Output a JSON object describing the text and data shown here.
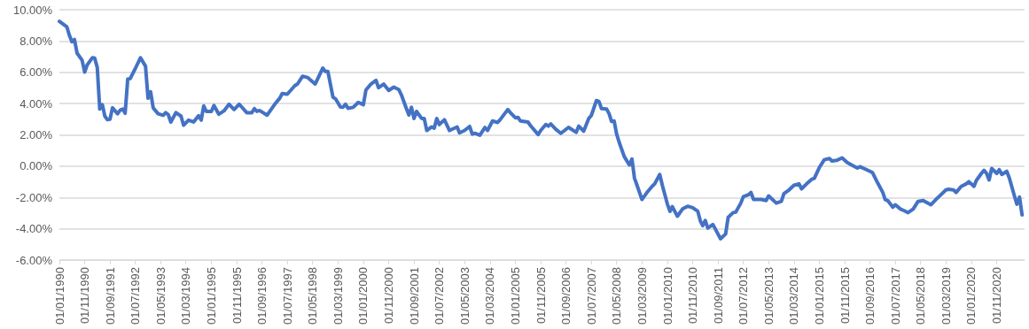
{
  "chart_data": {
    "type": "line",
    "line_style": "solid",
    "marker": "none",
    "grid": "y",
    "xlim": [
      "1990-01",
      "2021-10"
    ],
    "xticks": [
      {
        "value": "1990-01",
        "label": "01/01/1990"
      },
      {
        "value": "1990-11",
        "label": "01/11/1990"
      },
      {
        "value": "1991-09",
        "label": "01/09/1991"
      },
      {
        "value": "1992-07",
        "label": "01/07/1992"
      },
      {
        "value": "1993-05",
        "label": "01/05/1993"
      },
      {
        "value": "1994-03",
        "label": "01/03/1994"
      },
      {
        "value": "1995-01",
        "label": "01/01/1995"
      },
      {
        "value": "1995-11",
        "label": "01/11/1995"
      },
      {
        "value": "1996-09",
        "label": "01/09/1996"
      },
      {
        "value": "1997-07",
        "label": "01/07/1997"
      },
      {
        "value": "1998-05",
        "label": "01/05/1998"
      },
      {
        "value": "1999-03",
        "label": "01/03/1999"
      },
      {
        "value": "2000-01",
        "label": "01/01/2000"
      },
      {
        "value": "2000-11",
        "label": "01/11/2000"
      },
      {
        "value": "2001-09",
        "label": "01/09/2001"
      },
      {
        "value": "2002-07",
        "label": "01/07/2002"
      },
      {
        "value": "2003-05",
        "label": "01/05/2003"
      },
      {
        "value": "2004-03",
        "label": "01/03/2004"
      },
      {
        "value": "2005-01",
        "label": "01/01/2005"
      },
      {
        "value": "2005-11",
        "label": "01/11/2005"
      },
      {
        "value": "2006-09",
        "label": "01/09/2006"
      },
      {
        "value": "2007-07",
        "label": "01/07/2007"
      },
      {
        "value": "2008-05",
        "label": "01/05/2008"
      },
      {
        "value": "2009-03",
        "label": "01/03/2009"
      },
      {
        "value": "2010-01",
        "label": "01/01/2010"
      },
      {
        "value": "2010-11",
        "label": "01/11/2010"
      },
      {
        "value": "2011-09",
        "label": "01/09/2011"
      },
      {
        "value": "2012-07",
        "label": "01/07/2012"
      },
      {
        "value": "2013-05",
        "label": "01/05/2013"
      },
      {
        "value": "2014-03",
        "label": "01/03/2014"
      },
      {
        "value": "2015-01",
        "label": "01/01/2015"
      },
      {
        "value": "2015-11",
        "label": "01/11/2015"
      },
      {
        "value": "2016-09",
        "label": "01/09/2016"
      },
      {
        "value": "2017-07",
        "label": "01/07/2017"
      },
      {
        "value": "2018-05",
        "label": "01/05/2018"
      },
      {
        "value": "2019-03",
        "label": "01/03/2019"
      },
      {
        "value": "2020-01",
        "label": "01/01/2020"
      },
      {
        "value": "2020-11",
        "label": "01/11/2020"
      }
    ],
    "ylim": [
      -6,
      10
    ],
    "yticks": [
      {
        "value": -6,
        "label": "-6.00%"
      },
      {
        "value": -4,
        "label": "-4.00%"
      },
      {
        "value": -2,
        "label": "-2.00%"
      },
      {
        "value": 0,
        "label": "0.00%"
      },
      {
        "value": 2,
        "label": "2.00%"
      },
      {
        "value": 4,
        "label": "4.00%"
      },
      {
        "value": 6,
        "label": "6.00%"
      },
      {
        "value": 8,
        "label": "8.00%"
      },
      {
        "value": 10,
        "label": "10.00%"
      }
    ],
    "series": [
      {
        "color": "#4472c4",
        "x": [
          "1990-01",
          "1990-04",
          "1990-05",
          "1990-06",
          "1990-07",
          "1990-08",
          "1990-10",
          "1990-11",
          "1990-12",
          "1991-02",
          "1991-03",
          "1991-04",
          "1991-05",
          "1991-06",
          "1991-07",
          "1991-08",
          "1991-09",
          "1991-10",
          "1991-12",
          "1992-01",
          "1992-02",
          "1992-03",
          "1992-04",
          "1992-05",
          "1992-07",
          "1992-09",
          "1992-11",
          "1992-12",
          "1993-01",
          "1993-02",
          "1993-04",
          "1993-06",
          "1993-07",
          "1993-08",
          "1993-09",
          "1993-11",
          "1994-01",
          "1994-02",
          "1994-04",
          "1994-06",
          "1994-08",
          "1994-09",
          "1994-10",
          "1994-11",
          "1995-01",
          "1995-02",
          "1995-04",
          "1995-06",
          "1995-08",
          "1995-10",
          "1995-12",
          "1996-01",
          "1996-03",
          "1996-05",
          "1996-06",
          "1996-07",
          "1996-08",
          "1996-11",
          "1997-02",
          "1997-04",
          "1997-05",
          "1997-07",
          "1997-10",
          "1997-11",
          "1998-01",
          "1998-03",
          "1998-06",
          "1998-09",
          "1998-10",
          "1998-11",
          "1999-01",
          "1999-02",
          "1999-04",
          "1999-05",
          "1999-06",
          "1999-07",
          "1999-09",
          "1999-11",
          "2000-01",
          "2000-02",
          "2000-04",
          "2000-06",
          "2000-07",
          "2000-09",
          "2000-11",
          "2001-01",
          "2001-03",
          "2001-04",
          "2001-06",
          "2001-07",
          "2001-08",
          "2001-09",
          "2001-10",
          "2001-12",
          "2002-01",
          "2002-02",
          "2002-04",
          "2002-05",
          "2002-06",
          "2002-07",
          "2002-09",
          "2002-11",
          "2003-02",
          "2003-03",
          "2003-05",
          "2003-07",
          "2003-08",
          "2003-09",
          "2003-11",
          "2004-01",
          "2004-02",
          "2004-04",
          "2004-06",
          "2004-07",
          "2004-10",
          "2004-11",
          "2005-01",
          "2005-02",
          "2005-03",
          "2005-06",
          "2005-07",
          "2005-10",
          "2005-11",
          "2006-01",
          "2006-02",
          "2006-03",
          "2006-05",
          "2006-07",
          "2006-10",
          "2007-01",
          "2007-02",
          "2007-04",
          "2007-06",
          "2007-07",
          "2007-09",
          "2007-10",
          "2007-11",
          "2008-01",
          "2008-02",
          "2008-03",
          "2008-04",
          "2008-05",
          "2008-06",
          "2008-08",
          "2008-10",
          "2008-11",
          "2008-12",
          "2009-01",
          "2009-03",
          "2009-05",
          "2009-07",
          "2009-08",
          "2009-10",
          "2009-11",
          "2010-01",
          "2010-02",
          "2010-03",
          "2010-05",
          "2010-07",
          "2010-09",
          "2010-11",
          "2011-01",
          "2011-02",
          "2011-03",
          "2011-04",
          "2011-05",
          "2011-07",
          "2011-08",
          "2011-10",
          "2011-12",
          "2012-01",
          "2012-03",
          "2012-04",
          "2012-06",
          "2012-07",
          "2012-09",
          "2012-10",
          "2012-11",
          "2013-02",
          "2013-04",
          "2013-05",
          "2013-08",
          "2013-10",
          "2013-11",
          "2014-01",
          "2014-03",
          "2014-05",
          "2014-06",
          "2014-08",
          "2014-10",
          "2014-11",
          "2015-01",
          "2015-03",
          "2015-05",
          "2015-06",
          "2015-08",
          "2015-10",
          "2015-12",
          "2016-02",
          "2016-04",
          "2016-05",
          "2016-09",
          "2016-10",
          "2016-12",
          "2017-02",
          "2017-03",
          "2017-04",
          "2017-06",
          "2017-07",
          "2017-09",
          "2017-11",
          "2017-12",
          "2018-02",
          "2018-04",
          "2018-06",
          "2018-09",
          "2018-11",
          "2018-12",
          "2019-03",
          "2019-04",
          "2019-06",
          "2019-07",
          "2019-09",
          "2019-11",
          "2019-12",
          "2020-02",
          "2020-03",
          "2020-05",
          "2020-06",
          "2020-07",
          "2020-08",
          "2020-09",
          "2020-11",
          "2020-12",
          "2021-01",
          "2021-03",
          "2021-04",
          "2021-06",
          "2021-07",
          "2021-08",
          "2021-09"
        ],
        "values": [
          9.26,
          8.9,
          8.37,
          7.95,
          8.1,
          7.23,
          6.77,
          6.01,
          6.47,
          6.93,
          6.9,
          6.32,
          3.65,
          3.93,
          3.2,
          2.97,
          3.0,
          3.73,
          3.35,
          3.58,
          3.65,
          3.38,
          5.56,
          5.6,
          6.24,
          6.93,
          6.39,
          4.34,
          4.75,
          3.73,
          3.35,
          3.25,
          3.42,
          3.3,
          2.82,
          3.42,
          3.2,
          2.62,
          2.94,
          2.82,
          3.23,
          2.94,
          3.85,
          3.5,
          3.5,
          3.88,
          3.32,
          3.53,
          3.96,
          3.62,
          3.96,
          3.78,
          3.42,
          3.42,
          3.68,
          3.5,
          3.56,
          3.26,
          3.96,
          4.34,
          4.64,
          4.6,
          5.15,
          5.25,
          5.75,
          5.67,
          5.25,
          6.27,
          6.05,
          6.05,
          4.41,
          4.3,
          3.78,
          3.77,
          3.96,
          3.7,
          3.76,
          4.08,
          3.93,
          4.87,
          5.25,
          5.48,
          5.02,
          5.25,
          4.84,
          5.05,
          4.9,
          4.57,
          3.68,
          3.27,
          3.76,
          3.05,
          3.5,
          3.05,
          3.05,
          2.28,
          2.51,
          2.43,
          3.05,
          2.66,
          2.97,
          2.28,
          2.51,
          2.13,
          2.28,
          2.54,
          2.05,
          2.1,
          1.98,
          2.47,
          2.28,
          2.89,
          2.79,
          2.97,
          3.62,
          3.42,
          3.09,
          3.12,
          2.89,
          2.82,
          2.59,
          2.02,
          2.28,
          2.66,
          2.56,
          2.7,
          2.36,
          2.1,
          2.48,
          2.16,
          2.56,
          2.24,
          3.05,
          3.23,
          4.19,
          4.14,
          3.68,
          3.65,
          3.35,
          2.86,
          2.89,
          2.05,
          1.52,
          0.61,
          0.08,
          0.46,
          -0.76,
          -1.22,
          -2.13,
          -1.68,
          -1.29,
          -1.13,
          -0.53,
          -1.22,
          -2.43,
          -2.89,
          -2.59,
          -3.2,
          -2.74,
          -2.56,
          -2.66,
          -2.89,
          -3.5,
          -3.8,
          -3.47,
          -3.96,
          -3.73,
          -4.03,
          -4.64,
          -4.34,
          -3.27,
          -2.97,
          -2.94,
          -2.36,
          -1.95,
          -1.83,
          -1.68,
          -2.13,
          -2.13,
          -2.2,
          -1.9,
          -2.36,
          -2.25,
          -1.75,
          -1.52,
          -1.22,
          -1.13,
          -1.45,
          -1.13,
          -0.84,
          -0.78,
          -0.08,
          0.41,
          0.49,
          0.33,
          0.38,
          0.53,
          0.23,
          0.05,
          -0.12,
          -0.03,
          -0.33,
          -0.42,
          -1.07,
          -1.68,
          -2.13,
          -2.2,
          -2.62,
          -2.47,
          -2.74,
          -2.89,
          -2.97,
          -2.74,
          -2.25,
          -2.2,
          -2.47,
          -2.13,
          -1.98,
          -1.52,
          -1.48,
          -1.52,
          -1.68,
          -1.29,
          -1.13,
          -0.99,
          -1.29,
          -0.91,
          -0.46,
          -0.27,
          -0.46,
          -0.88,
          -0.15,
          -0.46,
          -0.23,
          -0.53,
          -0.33,
          -0.76,
          -1.9,
          -2.43,
          -1.98,
          -3.12
        ]
      }
    ]
  }
}
